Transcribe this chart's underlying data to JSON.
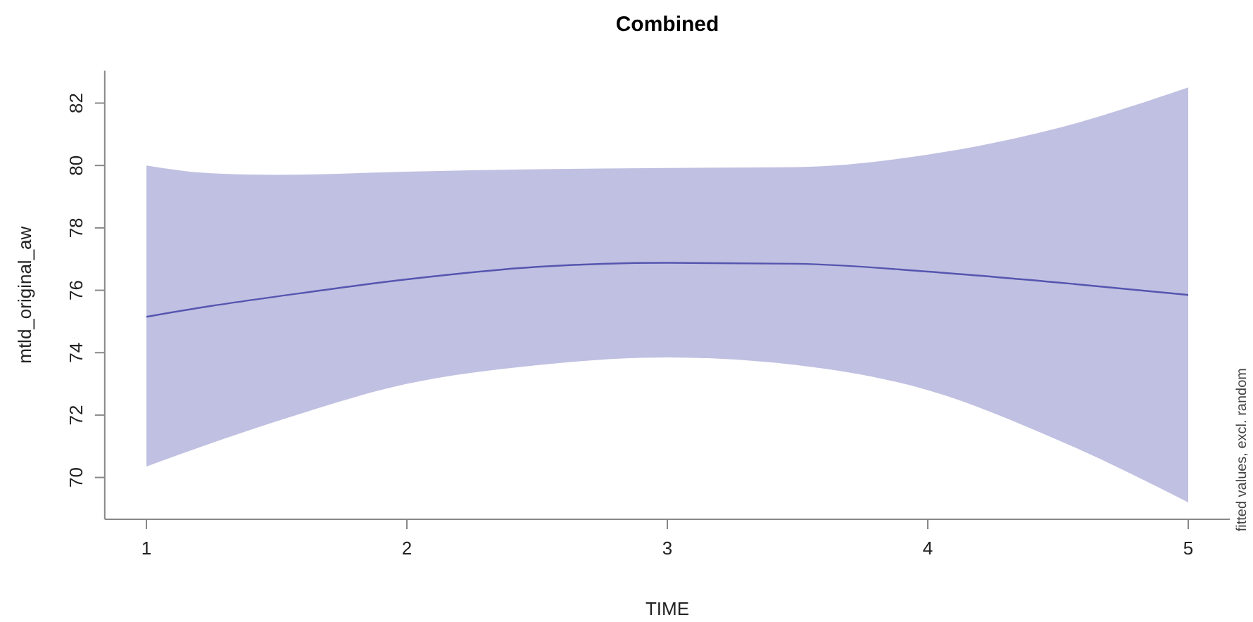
{
  "chart_data": {
    "type": "line",
    "title": "Combined",
    "xlabel": "TIME",
    "ylabel": "mtld_original_aw",
    "annotations": [
      "fitted values, excl. random"
    ],
    "x": [
      1,
      1.25,
      1.5,
      2,
      2.5,
      3,
      3.5,
      4,
      4.5,
      5
    ],
    "series": [
      {
        "color": "#5555b0",
        "values": [
          75.15,
          75.5,
          75.8,
          76.35,
          76.75,
          76.88,
          76.85,
          76.6,
          76.25,
          75.85
        ],
        "lower": [
          70.35,
          71.1,
          71.8,
          73.0,
          73.6,
          73.85,
          73.6,
          72.8,
          71.2,
          69.2
        ],
        "upper": [
          80.0,
          79.75,
          79.7,
          79.8,
          79.88,
          79.92,
          79.95,
          80.35,
          81.2,
          82.5
        ]
      }
    ],
    "xlim": [
      0.84,
      5.16
    ],
    "xticks": [
      1,
      2,
      3,
      4,
      5
    ],
    "ylim": [
      68.66,
      83.04
    ],
    "yticks": [
      70,
      72,
      74,
      76,
      78,
      80,
      82
    ],
    "grid": false
  }
}
